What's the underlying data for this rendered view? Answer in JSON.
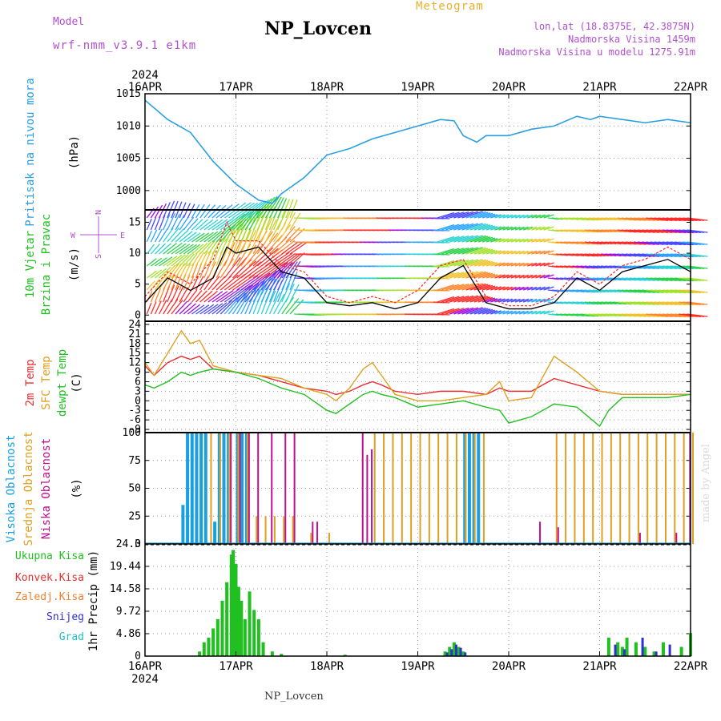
{
  "header": {
    "model_label": "Model",
    "model_name": "wrf-nmm_v3.9.1 e1km",
    "station": "NP_Lovcen",
    "meteogram_label": "Meteogram",
    "lonlat": "lon,lat (18.8375E, 42.3875N)",
    "altitude": "Nadmorska Visina 1459m",
    "model_altitude": "Nadmorska Visina u modelu 1275.91m",
    "credit": "made by Angel",
    "footer_station": "NP_Lovcen"
  },
  "colors": {
    "pressure": "#2a9fe0",
    "model": "#b050d0",
    "meteogram": "#e8b030",
    "temp2m": "#e83030",
    "sfc_temp": "#e0a020",
    "dewpoint": "#20c020",
    "high_cloud": "#1aa0e0",
    "mid_cloud": "#e0a020",
    "low_cloud": "#c01090",
    "total_precip": "#20c020",
    "conv_precip": "#e83030",
    "freezing_precip": "#f08030",
    "snow": "#3030d0",
    "hail": "#20c0c0"
  },
  "chart_data": {
    "type": "line",
    "time_axis": {
      "year": "2024",
      "ticks": [
        "16APR",
        "17APR",
        "18APR",
        "19APR",
        "20APR",
        "21APR",
        "22APR"
      ],
      "range_days": [
        0,
        6
      ]
    },
    "panels": [
      {
        "id": "pressure",
        "ylabel": [
          "Pritisak na nivou mora",
          "(hPa)"
        ],
        "ylim": [
          997,
          1015
        ],
        "yticks": [
          1000,
          1005,
          1010,
          1015
        ],
        "series": [
          {
            "name": "Pritisak na nivou mora",
            "x": [
              0,
              0.25,
              0.5,
              0.75,
              1.0,
              1.25,
              1.4,
              1.5,
              1.75,
              2.0,
              2.25,
              2.5,
              2.75,
              3.0,
              3.25,
              3.4,
              3.5,
              3.65,
              3.75,
              4.0,
              4.25,
              4.5,
              4.75,
              4.9,
              5.0,
              5.25,
              5.5,
              5.75,
              6.0
            ],
            "values": [
              1014,
              1011,
              1009,
              1004.5,
              1001,
              998.5,
              998,
              999.5,
              1002,
              1005.5,
              1006.5,
              1008,
              1009,
              1010,
              1011,
              1010.8,
              1008.5,
              1007.5,
              1008.5,
              1008.5,
              1009.5,
              1010,
              1011.5,
              1011,
              1011.5,
              1011,
              1010.5,
              1011,
              1010.5
            ]
          }
        ]
      },
      {
        "id": "wind",
        "ylabel": [
          "10m Vjetar",
          "Brzina i Pravac",
          "(m/s)"
        ],
        "compass": [
          "N",
          "S",
          "W",
          "E"
        ],
        "ylim": [
          -1,
          17
        ],
        "yticks": [
          0,
          5,
          10,
          15
        ],
        "series": [
          {
            "name": "Brzina",
            "x": [
              0,
              0.25,
              0.5,
              0.75,
              0.9,
              1.0,
              1.25,
              1.5,
              1.75,
              2.0,
              2.25,
              2.5,
              2.75,
              3.0,
              3.25,
              3.5,
              3.75,
              4.0,
              4.25,
              4.5,
              4.75,
              5.0,
              5.25,
              5.5,
              5.75,
              6.0
            ],
            "values": [
              2,
              6,
              4,
              6,
              11,
              10,
              11,
              7,
              6,
              2,
              1.5,
              2,
              1,
              2,
              6,
              8,
              2,
              1,
              1,
              2,
              6,
              4,
              7,
              8,
              9,
              7
            ]
          },
          {
            "name": "Udari",
            "x": [
              0,
              0.25,
              0.5,
              0.75,
              0.9,
              1.0,
              1.25,
              1.5,
              1.75,
              2.0,
              2.25,
              2.5,
              2.75,
              3.0,
              3.25,
              3.5,
              3.75,
              4.0,
              4.25,
              4.5,
              4.75,
              5.0,
              5.25,
              5.5,
              5.75,
              6.0
            ],
            "values": [
              3,
              7,
              5,
              9,
              15,
              12,
              12,
              8,
              7,
              3,
              2,
              3,
              2,
              4,
              8,
              9,
              3,
              1.5,
              1.5,
              3,
              7,
              5,
              8,
              9,
              11,
              9
            ]
          }
        ]
      },
      {
        "id": "temperature",
        "ylabel": [
          "2m Temp",
          "SFC Temp",
          "dewpt Temp",
          "(C)"
        ],
        "ylim": [
          -10,
          25
        ],
        "yticks": [
          -9,
          -6,
          -3,
          0,
          3,
          6,
          9,
          12,
          15,
          18,
          21,
          24
        ],
        "series": [
          {
            "name": "2m Temp",
            "x": [
              0,
              0.1,
              0.25,
              0.4,
              0.5,
              0.6,
              0.75,
              1.0,
              1.25,
              1.5,
              1.75,
              2.0,
              2.1,
              2.25,
              2.4,
              2.5,
              2.6,
              2.75,
              3.0,
              3.25,
              3.5,
              3.75,
              3.9,
              4.0,
              4.25,
              4.5,
              4.75,
              5.0,
              5.25,
              5.5,
              5.75,
              6.0
            ],
            "values": [
              11,
              8,
              12,
              14,
              13,
              14,
              10,
              9,
              8,
              6,
              4,
              3,
              2,
              3,
              5,
              6,
              5,
              3,
              2,
              3,
              3,
              2,
              4,
              3,
              3,
              7,
              5,
              3,
              2,
              2,
              2,
              2
            ]
          },
          {
            "name": "SFC Temp",
            "x": [
              0,
              0.1,
              0.25,
              0.4,
              0.5,
              0.6,
              0.75,
              1.0,
              1.25,
              1.5,
              1.75,
              2.0,
              2.1,
              2.25,
              2.4,
              2.5,
              2.6,
              2.75,
              3.0,
              3.25,
              3.5,
              3.75,
              3.9,
              4.0,
              4.25,
              4.5,
              4.75,
              5.0,
              5.25,
              5.5,
              5.75,
              6.0
            ],
            "values": [
              12,
              8,
              15,
              22,
              18,
              19,
              11,
              9,
              8,
              7,
              4,
              2,
              0,
              4,
              10,
              12,
              8,
              2,
              0,
              0,
              1,
              2,
              6,
              0,
              1,
              14,
              9,
              3,
              2,
              2,
              2,
              2
            ]
          },
          {
            "name": "dewpt Temp",
            "x": [
              0,
              0.1,
              0.25,
              0.4,
              0.5,
              0.6,
              0.75,
              1.0,
              1.25,
              1.5,
              1.75,
              2.0,
              2.1,
              2.25,
              2.4,
              2.5,
              2.6,
              2.75,
              3.0,
              3.25,
              3.5,
              3.75,
              3.9,
              4.0,
              4.25,
              4.5,
              4.75,
              5.0,
              5.1,
              5.25,
              5.5,
              5.75,
              6.0
            ],
            "values": [
              5,
              4,
              6,
              9,
              8,
              9,
              10,
              9,
              7,
              4,
              2,
              -3,
              -4,
              -1,
              2,
              3,
              2,
              1,
              -2,
              -1,
              0,
              -2,
              -3,
              -7,
              -5,
              -1,
              -2,
              -8,
              -3,
              1,
              1,
              1,
              2
            ]
          }
        ]
      },
      {
        "id": "clouds",
        "ylabel": [
          "Visoka Oblacnost",
          "Srednja Oblacnost",
          "Niska Oblacnost",
          "(%)"
        ],
        "ylim": [
          0,
          100
        ],
        "yticks": [
          0,
          25,
          50,
          75,
          100
        ],
        "series": [
          {
            "name": "Visoka Oblacnost",
            "x": [
              0.4,
              0.45,
              0.5,
              0.55,
              0.6,
              0.65,
              0.75,
              0.8,
              0.85,
              0.9,
              1.0,
              1.05,
              1.1,
              3.5,
              3.55,
              3.6,
              3.65
            ],
            "values": [
              35,
              100,
              100,
              100,
              100,
              100,
              20,
              100,
              100,
              100,
              100,
              100,
              100,
              100,
              100,
              100,
              100
            ]
          },
          {
            "name": "Srednja Oblacnost",
            "x": [
              0.7,
              0.8,
              0.9,
              1.0,
              1.1,
              1.2,
              1.3,
              1.4,
              1.5,
              1.6,
              1.8,
              2.0,
              2.5,
              2.6,
              2.7,
              2.8,
              2.9,
              3.0,
              3.1,
              3.2,
              3.3,
              3.4,
              3.5,
              3.6,
              3.7,
              4.5,
              4.6,
              4.7,
              4.8,
              4.9,
              5.0,
              5.1,
              5.2,
              5.3,
              5.4,
              5.5,
              5.6,
              5.7,
              5.8,
              5.9,
              6.0
            ],
            "values": [
              100,
              100,
              100,
              100,
              100,
              25,
              25,
              25,
              25,
              25,
              10,
              10,
              100,
              100,
              100,
              100,
              100,
              100,
              100,
              100,
              100,
              100,
              100,
              100,
              100,
              100,
              100,
              100,
              100,
              100,
              100,
              100,
              100,
              100,
              100,
              100,
              100,
              100,
              100,
              100,
              100
            ]
          },
          {
            "name": "Niska Oblacnost",
            "x": [
              0.9,
              1.0,
              1.1,
              1.2,
              1.35,
              1.5,
              1.6,
              1.8,
              1.85,
              2.35,
              2.4,
              2.45,
              4.3,
              4.5,
              5.4,
              5.8,
              5.95
            ],
            "values": [
              100,
              100,
              100,
              100,
              100,
              100,
              100,
              20,
              20,
              100,
              80,
              85,
              20,
              15,
              10,
              10,
              100
            ]
          }
        ]
      },
      {
        "id": "precip",
        "ylabel": [
          "1hr Precip (mm)"
        ],
        "legend": [
          "Ukupna Kisa",
          "Konvek.Kisa",
          "Zaledj.Kisa",
          "Snijeg",
          "Grad"
        ],
        "ylim": [
          0,
          24.3
        ],
        "yticks": [
          0,
          4.86,
          9.72,
          14.58,
          19.44,
          24.3
        ],
        "series": [
          {
            "name": "Ukupna Kisa",
            "x": [
              0.6,
              0.65,
              0.7,
              0.75,
              0.8,
              0.85,
              0.9,
              0.95,
              0.97,
              1.0,
              1.03,
              1.06,
              1.1,
              1.15,
              1.2,
              1.25,
              1.3,
              1.4,
              1.5,
              2.2,
              3.3,
              3.35,
              3.4,
              3.45,
              3.5,
              5.1,
              5.2,
              5.25,
              5.3,
              5.4,
              5.5,
              5.6,
              5.7,
              5.9,
              6.0
            ],
            "values": [
              1,
              3,
              4,
              6,
              8,
              12,
              16,
              22,
              23,
              20,
              15,
              12,
              8,
              14,
              10,
              8,
              3,
              1,
              0.5,
              0.3,
              1,
              2,
              3,
              2,
              1,
              4,
              3,
              2,
              4,
              3,
              2,
              1,
              3,
              2,
              5
            ]
          },
          {
            "name": "Snijeg",
            "x": [
              3.3,
              3.35,
              3.4,
              3.45,
              3.5,
              5.15,
              5.25,
              5.45,
              5.6,
              5.75
            ],
            "values": [
              0.8,
              1.5,
              2.5,
              1.8,
              0.8,
              2.5,
              1.5,
              4,
              1,
              2.5
            ]
          }
        ]
      }
    ]
  }
}
